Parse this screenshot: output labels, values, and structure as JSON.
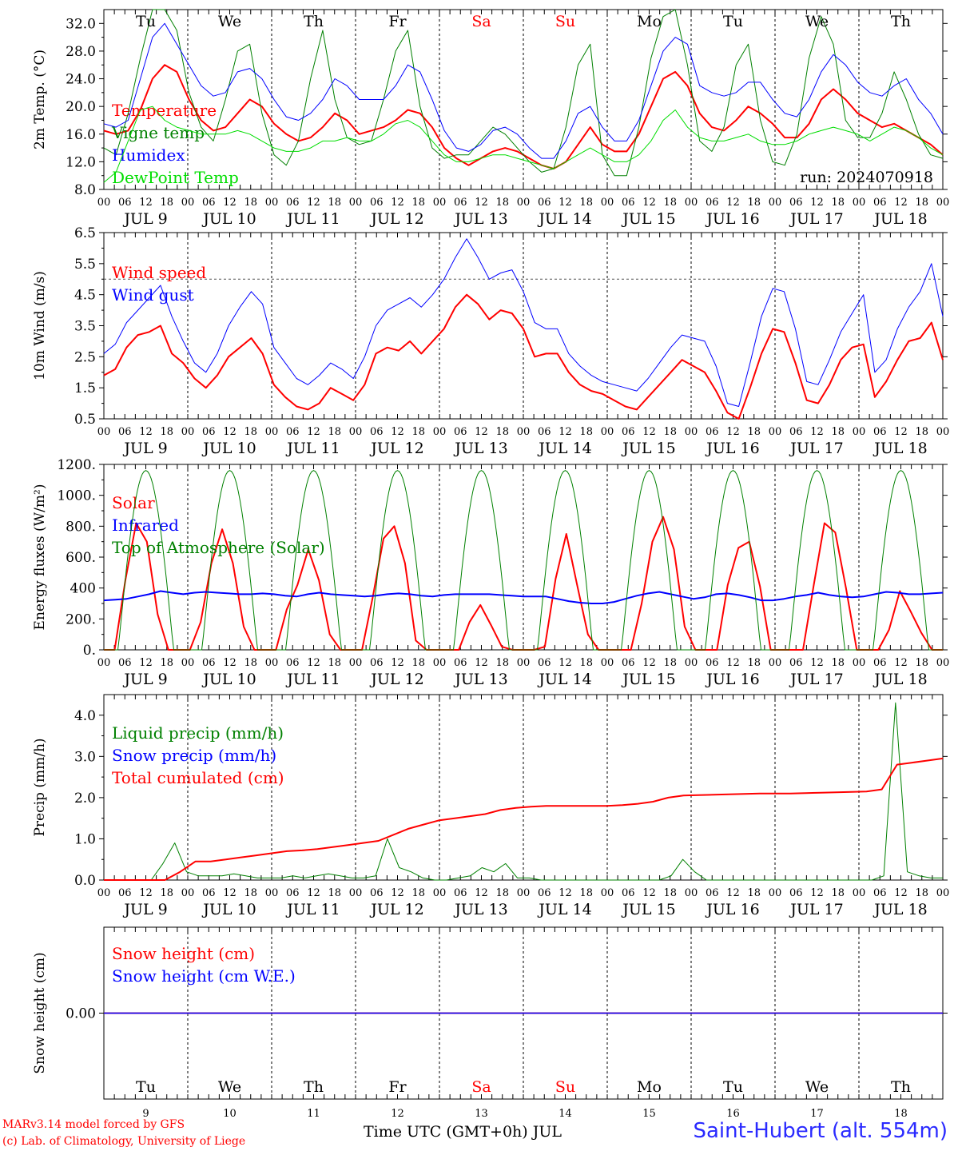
{
  "run_label": "run: 2024070918",
  "x_axis": {
    "hour_labels": [
      "00",
      "06",
      "12",
      "18"
    ],
    "dates": [
      "JUL  9",
      "JUL 10",
      "JUL 11",
      "JUL 12",
      "JUL 13",
      "JUL 14",
      "JUL 15",
      "JUL 16",
      "JUL 17",
      "JUL 18"
    ],
    "weekdays": [
      "Tu",
      "We",
      "Th",
      "Fr",
      "Sa",
      "Su",
      "Mo",
      "Tu",
      "We",
      "Th"
    ],
    "day_numbers": [
      "9",
      "10",
      "11",
      "12",
      "13",
      "14",
      "15",
      "16",
      "17",
      "18"
    ],
    "weekend_color": "#ff0000",
    "last_tick": "00"
  },
  "footer": {
    "credit_line1": "MARv3.14 model forced by GFS",
    "credit_line2": "(c) Lab. of Climatology, University of Liege",
    "xlabel": "Time UTC (GMT+0h) JUL",
    "station": "Saint-Hubert (alt. 554m)"
  },
  "chart_data": [
    {
      "type": "line",
      "id": "temperature",
      "ylabel": "2m Temp. (°C)",
      "ylim": [
        8,
        34
      ],
      "yticks": [
        "8.0",
        "12.0",
        "16.0",
        "20.0",
        "24.0",
        "28.0",
        "32.0"
      ],
      "tick_values": [
        8,
        12,
        16,
        20,
        24,
        28,
        32
      ],
      "series": [
        {
          "name": "Temperature",
          "color": "#ff0000",
          "width": 2,
          "values": [
            16.5,
            16,
            16.5,
            19.5,
            24,
            26,
            25,
            21,
            18,
            16.5,
            17,
            19,
            21,
            20,
            17.5,
            16,
            15,
            15.5,
            17,
            19,
            18,
            16,
            16.5,
            17,
            18,
            19.5,
            19,
            17,
            14,
            12.5,
            11.5,
            12.5,
            13.5,
            14,
            13.5,
            12.5,
            11.5,
            11,
            12,
            14.5,
            17,
            14.5,
            13.5,
            13.5,
            16,
            20,
            24,
            25,
            23,
            19,
            17,
            16.5,
            18,
            20,
            19,
            17.5,
            15.5,
            15.5,
            17.5,
            21,
            22.5,
            21,
            19,
            18,
            17,
            17.5,
            16.5,
            15.5,
            14.5,
            13
          ]
        },
        {
          "name": "Vigne temp",
          "color": "#008000",
          "width": 1,
          "values": [
            14,
            13,
            19,
            27,
            34,
            35,
            31,
            22,
            17,
            15,
            21,
            28,
            29,
            19,
            13,
            11.5,
            15,
            24,
            31,
            21,
            15.5,
            14.5,
            15,
            21,
            28,
            31,
            20,
            14,
            12.5,
            13,
            13,
            15,
            17,
            16,
            14,
            12,
            10.5,
            11,
            17,
            26,
            29,
            13,
            10,
            10,
            17,
            27,
            33,
            34,
            26,
            15,
            13.5,
            17,
            26,
            29,
            18,
            12,
            11.5,
            16,
            27,
            33,
            29,
            18,
            15.5,
            15.5,
            19,
            25,
            21,
            16,
            13,
            12.5
          ]
        },
        {
          "name": "Humidex",
          "color": "#0000ff",
          "width": 1,
          "values": [
            17.5,
            17,
            18,
            24,
            30,
            32,
            29,
            26,
            23,
            21.5,
            22,
            25,
            25.5,
            24,
            21,
            18.5,
            18,
            19,
            21,
            24,
            23,
            21,
            21,
            21,
            23,
            26,
            25,
            21,
            16.5,
            14,
            13.5,
            14.5,
            16.5,
            17,
            16,
            14,
            12.5,
            12.5,
            15,
            19,
            20,
            17,
            15,
            15,
            18,
            23,
            28,
            30,
            29,
            23,
            22,
            21.5,
            22,
            23.5,
            23.5,
            21,
            19,
            18.5,
            21,
            25,
            27.5,
            26,
            23.5,
            22,
            21.5,
            23,
            24,
            21,
            19,
            16
          ]
        },
        {
          "name": "DewPoint Temp",
          "color": "#00dd00",
          "width": 1,
          "values": [
            9,
            10.5,
            15,
            19.5,
            20,
            18,
            17,
            16.5,
            16,
            16,
            16,
            16.5,
            16,
            15,
            14,
            13.5,
            13.5,
            14,
            15,
            15,
            15.5,
            15,
            15,
            16,
            17.5,
            18,
            17,
            15,
            13,
            12,
            12,
            12.5,
            13,
            13,
            12.5,
            12,
            11.5,
            11,
            12,
            13,
            14,
            13,
            12,
            12,
            13,
            15,
            18,
            19.5,
            17,
            15.5,
            15,
            15,
            15.5,
            16,
            15,
            14.5,
            14.5,
            15,
            16,
            16.5,
            17,
            16.5,
            16,
            15,
            16,
            17,
            16.5,
            15.5,
            14,
            13
          ]
        }
      ]
    },
    {
      "type": "line",
      "id": "wind",
      "ylabel": "10m Wind (m/s)",
      "ylim": [
        0.5,
        6.5
      ],
      "yticks": [
        "0.5",
        "1.5",
        "2.5",
        "3.5",
        "4.5",
        "5.5",
        "6.5"
      ],
      "tick_values": [
        0.5,
        1.5,
        2.5,
        3.5,
        4.5,
        5.5,
        6.5
      ],
      "reference_line": 5.0,
      "series": [
        {
          "name": "Wind speed",
          "color": "#ff0000",
          "width": 2,
          "values": [
            1.9,
            2.1,
            2.8,
            3.2,
            3.3,
            3.5,
            2.6,
            2.3,
            1.8,
            1.5,
            1.9,
            2.5,
            2.8,
            3.1,
            2.6,
            1.6,
            1.2,
            0.9,
            0.8,
            1.0,
            1.5,
            1.3,
            1.1,
            1.6,
            2.6,
            2.8,
            2.7,
            3.0,
            2.6,
            3.0,
            3.4,
            4.1,
            4.5,
            4.2,
            3.7,
            4.0,
            3.9,
            3.4,
            2.5,
            2.6,
            2.6,
            2.0,
            1.6,
            1.4,
            1.3,
            1.1,
            0.9,
            0.8,
            1.2,
            1.6,
            2.0,
            2.4,
            2.2,
            2.0,
            1.4,
            0.7,
            0.5,
            1.5,
            2.6,
            3.4,
            3.3,
            2.3,
            1.1,
            1.0,
            1.6,
            2.4,
            2.8,
            2.9,
            1.2,
            1.7,
            2.4,
            3.0,
            3.1,
            3.6,
            2.4
          ]
        },
        {
          "name": "Wind gust",
          "color": "#0000ff",
          "width": 1,
          "values": [
            2.6,
            2.9,
            3.6,
            4.0,
            4.4,
            4.8,
            3.8,
            3.0,
            2.3,
            2.0,
            2.6,
            3.5,
            4.1,
            4.6,
            4.2,
            2.8,
            2.3,
            1.8,
            1.6,
            1.9,
            2.3,
            2.1,
            1.8,
            2.5,
            3.5,
            4.0,
            4.2,
            4.4,
            4.1,
            4.5,
            5.0,
            5.7,
            6.3,
            5.7,
            5.0,
            5.2,
            5.3,
            4.6,
            3.6,
            3.4,
            3.4,
            2.6,
            2.2,
            1.9,
            1.7,
            1.6,
            1.5,
            1.4,
            1.8,
            2.3,
            2.8,
            3.2,
            3.1,
            3.0,
            2.2,
            1.0,
            0.9,
            2.3,
            3.8,
            4.7,
            4.6,
            3.4,
            1.7,
            1.6,
            2.4,
            3.3,
            3.9,
            4.5,
            2.0,
            2.4,
            3.4,
            4.1,
            4.6,
            5.5,
            3.8
          ]
        }
      ]
    },
    {
      "type": "line",
      "id": "energy",
      "ylabel": "Energy fluxes (W/m²)",
      "ylim": [
        0,
        1200
      ],
      "yticks": [
        "0.",
        "200.",
        "400",
        "600.",
        "800.",
        "1000.",
        "1200."
      ],
      "tick_values": [
        0,
        200,
        400,
        600,
        800,
        1000,
        1200
      ],
      "series": [
        {
          "name": "Solar",
          "color": "#ff0000",
          "width": 2,
          "values": [
            0,
            0,
            450,
            820,
            700,
            230,
            0,
            0,
            0,
            180,
            560,
            780,
            560,
            150,
            0,
            0,
            0,
            260,
            420,
            650,
            450,
            100,
            0,
            0,
            0,
            340,
            720,
            800,
            560,
            60,
            0,
            0,
            0,
            0,
            180,
            290,
            160,
            20,
            0,
            0,
            0,
            20,
            460,
            750,
            420,
            100,
            0,
            0,
            0,
            0,
            300,
            700,
            860,
            650,
            150,
            0,
            0,
            0,
            420,
            660,
            700,
            410,
            0,
            0,
            0,
            0,
            420,
            820,
            760,
            400,
            0,
            0,
            0,
            130,
            380,
            250,
            110,
            0,
            0
          ]
        },
        {
          "name": "Infrared",
          "color": "#0000ff",
          "width": 2,
          "values": [
            320,
            325,
            330,
            345,
            360,
            380,
            370,
            360,
            370,
            375,
            370,
            365,
            360,
            360,
            365,
            360,
            350,
            345,
            360,
            370,
            360,
            355,
            350,
            345,
            350,
            360,
            365,
            360,
            350,
            345,
            355,
            360,
            360,
            360,
            360,
            355,
            350,
            345,
            345,
            345,
            330,
            315,
            305,
            300,
            300,
            310,
            330,
            350,
            365,
            375,
            360,
            345,
            330,
            340,
            360,
            365,
            355,
            340,
            320,
            320,
            330,
            345,
            355,
            370,
            355,
            345,
            340,
            345,
            360,
            375,
            370,
            360,
            360,
            365,
            370
          ]
        },
        {
          "name": "Top of Atmosphere (Solar)",
          "color": "#008000",
          "width": 1,
          "values": []
        }
      ]
    },
    {
      "type": "line",
      "id": "precip",
      "ylabel": "Precip (mm/h)",
      "ylim": [
        0,
        4.5
      ],
      "yticks": [
        "0.0",
        "1.0",
        "2.0",
        "3.0",
        "4.0"
      ],
      "tick_values": [
        0,
        1,
        2,
        3,
        4
      ],
      "series": [
        {
          "name": "Liquid precip (mm/h)",
          "color": "#008000",
          "width": 1,
          "values": [
            0,
            0,
            0,
            0,
            0,
            0.4,
            0.9,
            0.2,
            0.1,
            0.1,
            0.1,
            0.15,
            0.1,
            0.05,
            0.05,
            0.05,
            0.1,
            0.05,
            0.1,
            0.15,
            0.1,
            0.05,
            0.05,
            0.1,
            1.0,
            0.3,
            0.2,
            0.05,
            0,
            0,
            0.05,
            0.1,
            0.3,
            0.2,
            0.4,
            0.05,
            0.05,
            0,
            0,
            0,
            0,
            0,
            0,
            0,
            0,
            0,
            0,
            0,
            0.1,
            0.5,
            0.2,
            0,
            0,
            0,
            0,
            0,
            0,
            0,
            0,
            0,
            0,
            0,
            0,
            0,
            0,
            0,
            0.1,
            4.3,
            0.2,
            0.1,
            0.05,
            0.05
          ]
        },
        {
          "name": "Snow precip (mm/h)",
          "color": "#0000ff",
          "width": 1,
          "values": []
        },
        {
          "name": "Total cumulated (cm)",
          "color": "#ff0000",
          "width": 2,
          "values": [
            0,
            0,
            0,
            0,
            0,
            0.2,
            0.45,
            0.45,
            0.5,
            0.55,
            0.6,
            0.65,
            0.7,
            0.72,
            0.75,
            0.8,
            0.85,
            0.9,
            0.95,
            1.1,
            1.25,
            1.35,
            1.45,
            1.5,
            1.55,
            1.6,
            1.7,
            1.75,
            1.78,
            1.8,
            1.8,
            1.8,
            1.8,
            1.8,
            1.82,
            1.85,
            1.9,
            2.0,
            2.05,
            2.06,
            2.07,
            2.08,
            2.09,
            2.1,
            2.1,
            2.1,
            2.11,
            2.12,
            2.13,
            2.14,
            2.15,
            2.2,
            2.8,
            2.85,
            2.9,
            2.95
          ]
        }
      ]
    },
    {
      "type": "line",
      "id": "snow",
      "ylabel": "Snow height (cm)",
      "ylim": [
        -1,
        1
      ],
      "yticks": [
        "0.00"
      ],
      "tick_values": [
        0
      ],
      "series": [
        {
          "name": "Snow height (cm)",
          "color": "#ff0000",
          "width": 1,
          "values": [
            0,
            0
          ]
        },
        {
          "name": "Snow height (cm W.E.)",
          "color": "#0000ff",
          "width": 1,
          "values": [
            0,
            0
          ]
        }
      ]
    }
  ]
}
